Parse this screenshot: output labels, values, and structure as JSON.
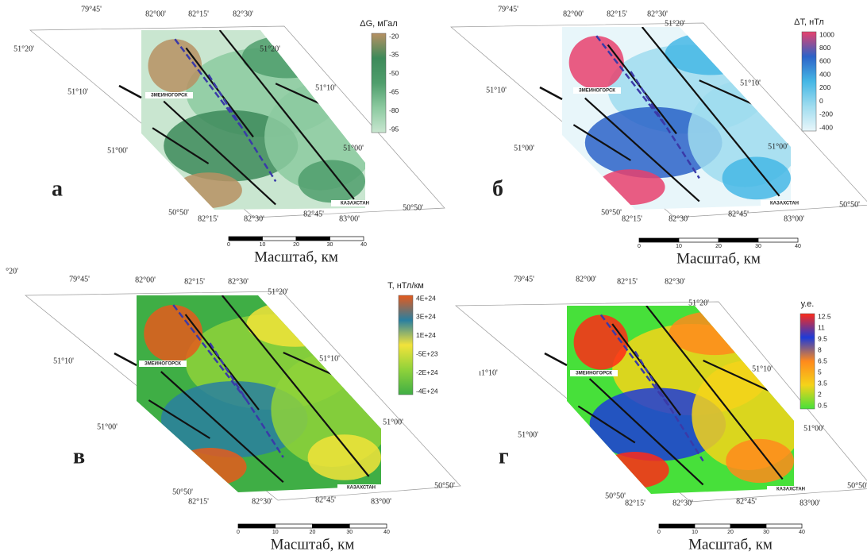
{
  "panels": [
    {
      "letter": "а",
      "legend_title": "ΔG, мГал",
      "legend_ticks": [
        "-20",
        "-35",
        "-50",
        "-65",
        "-80",
        "-95"
      ],
      "coords": [
        "79°45'",
        "82°00'",
        "82°15'",
        "82°30'",
        "51°20'",
        "51°20'",
        "51°10'",
        "51°10'",
        "51°00'",
        "51°00'",
        "50°50'",
        "82°15'",
        "82°30'",
        "82°45'",
        "83°00'",
        "50°50'"
      ],
      "places": [
        "ЗМЕИНОГОРСК",
        "КАЗАХСТАН"
      ],
      "scale_ticks": [
        "0",
        "10",
        "20",
        "30",
        "40"
      ],
      "scale_title": "Масштаб, км"
    },
    {
      "letter": "б",
      "legend_title": "ΔT, нТл",
      "legend_ticks": [
        "1000",
        "800",
        "600",
        "400",
        "200",
        "0",
        "-200",
        "-400"
      ],
      "coords": [
        "79°45'",
        "82°00'",
        "82°15'",
        "82°30'",
        "51°20'",
        "51°10'",
        "51°10'",
        "51°00'",
        "51°00'",
        "50°50'",
        "82°15'",
        "82°30'",
        "82°45'",
        "83°00'",
        "50°50'"
      ],
      "places": [
        "ЗМЕИНОГОРСК",
        "КАЗАХСТАН"
      ],
      "scale_ticks": [
        "0",
        "10",
        "20",
        "30",
        "40"
      ],
      "scale_title": "Масштаб, км"
    },
    {
      "letter": "в",
      "legend_title": "Т, нТл/км",
      "legend_ticks": [
        "4E+24",
        "3E+24",
        "1E+24",
        "-5E+23",
        "-2E+24",
        "-4E+24"
      ],
      "coords": [
        "°20'",
        "79°45'",
        "82°00'",
        "82°15'",
        "82°30'",
        "51°20'",
        "51°10'",
        "51°10'",
        "51°00'",
        "51°00'",
        "50°50'",
        "82°15'",
        "82°30'",
        "82°45'",
        "83°00'",
        "50°50'"
      ],
      "places": [
        "ЗМЕИНОГОРСК",
        "КАЗАХСТАН"
      ],
      "scale_ticks": [
        "0",
        "10",
        "20",
        "30",
        "40"
      ],
      "scale_title": "Масштаб, км"
    },
    {
      "letter": "г",
      "legend_title": "у.е.",
      "legend_ticks": [
        "12.5",
        "11",
        "9.5",
        "8",
        "6.5",
        "5",
        "3.5",
        "2",
        "0.5"
      ],
      "coords": [
        "79°45'",
        "82°00'",
        "82°15'",
        "82°30'",
        "51°20'",
        "ı1°10'",
        "51°10'",
        "51°00'",
        "51°00'",
        "50°50'",
        "82°15'",
        "82°30'",
        "82°45'",
        "83°00'",
        "50°50'"
      ],
      "places": [
        "ЗМЕИНОГОРСК",
        "КАЗАХСТАН"
      ],
      "scale_ticks": [
        "0",
        "10",
        "20",
        "30",
        "40"
      ],
      "scale_title": "Масштаб, км"
    }
  ]
}
